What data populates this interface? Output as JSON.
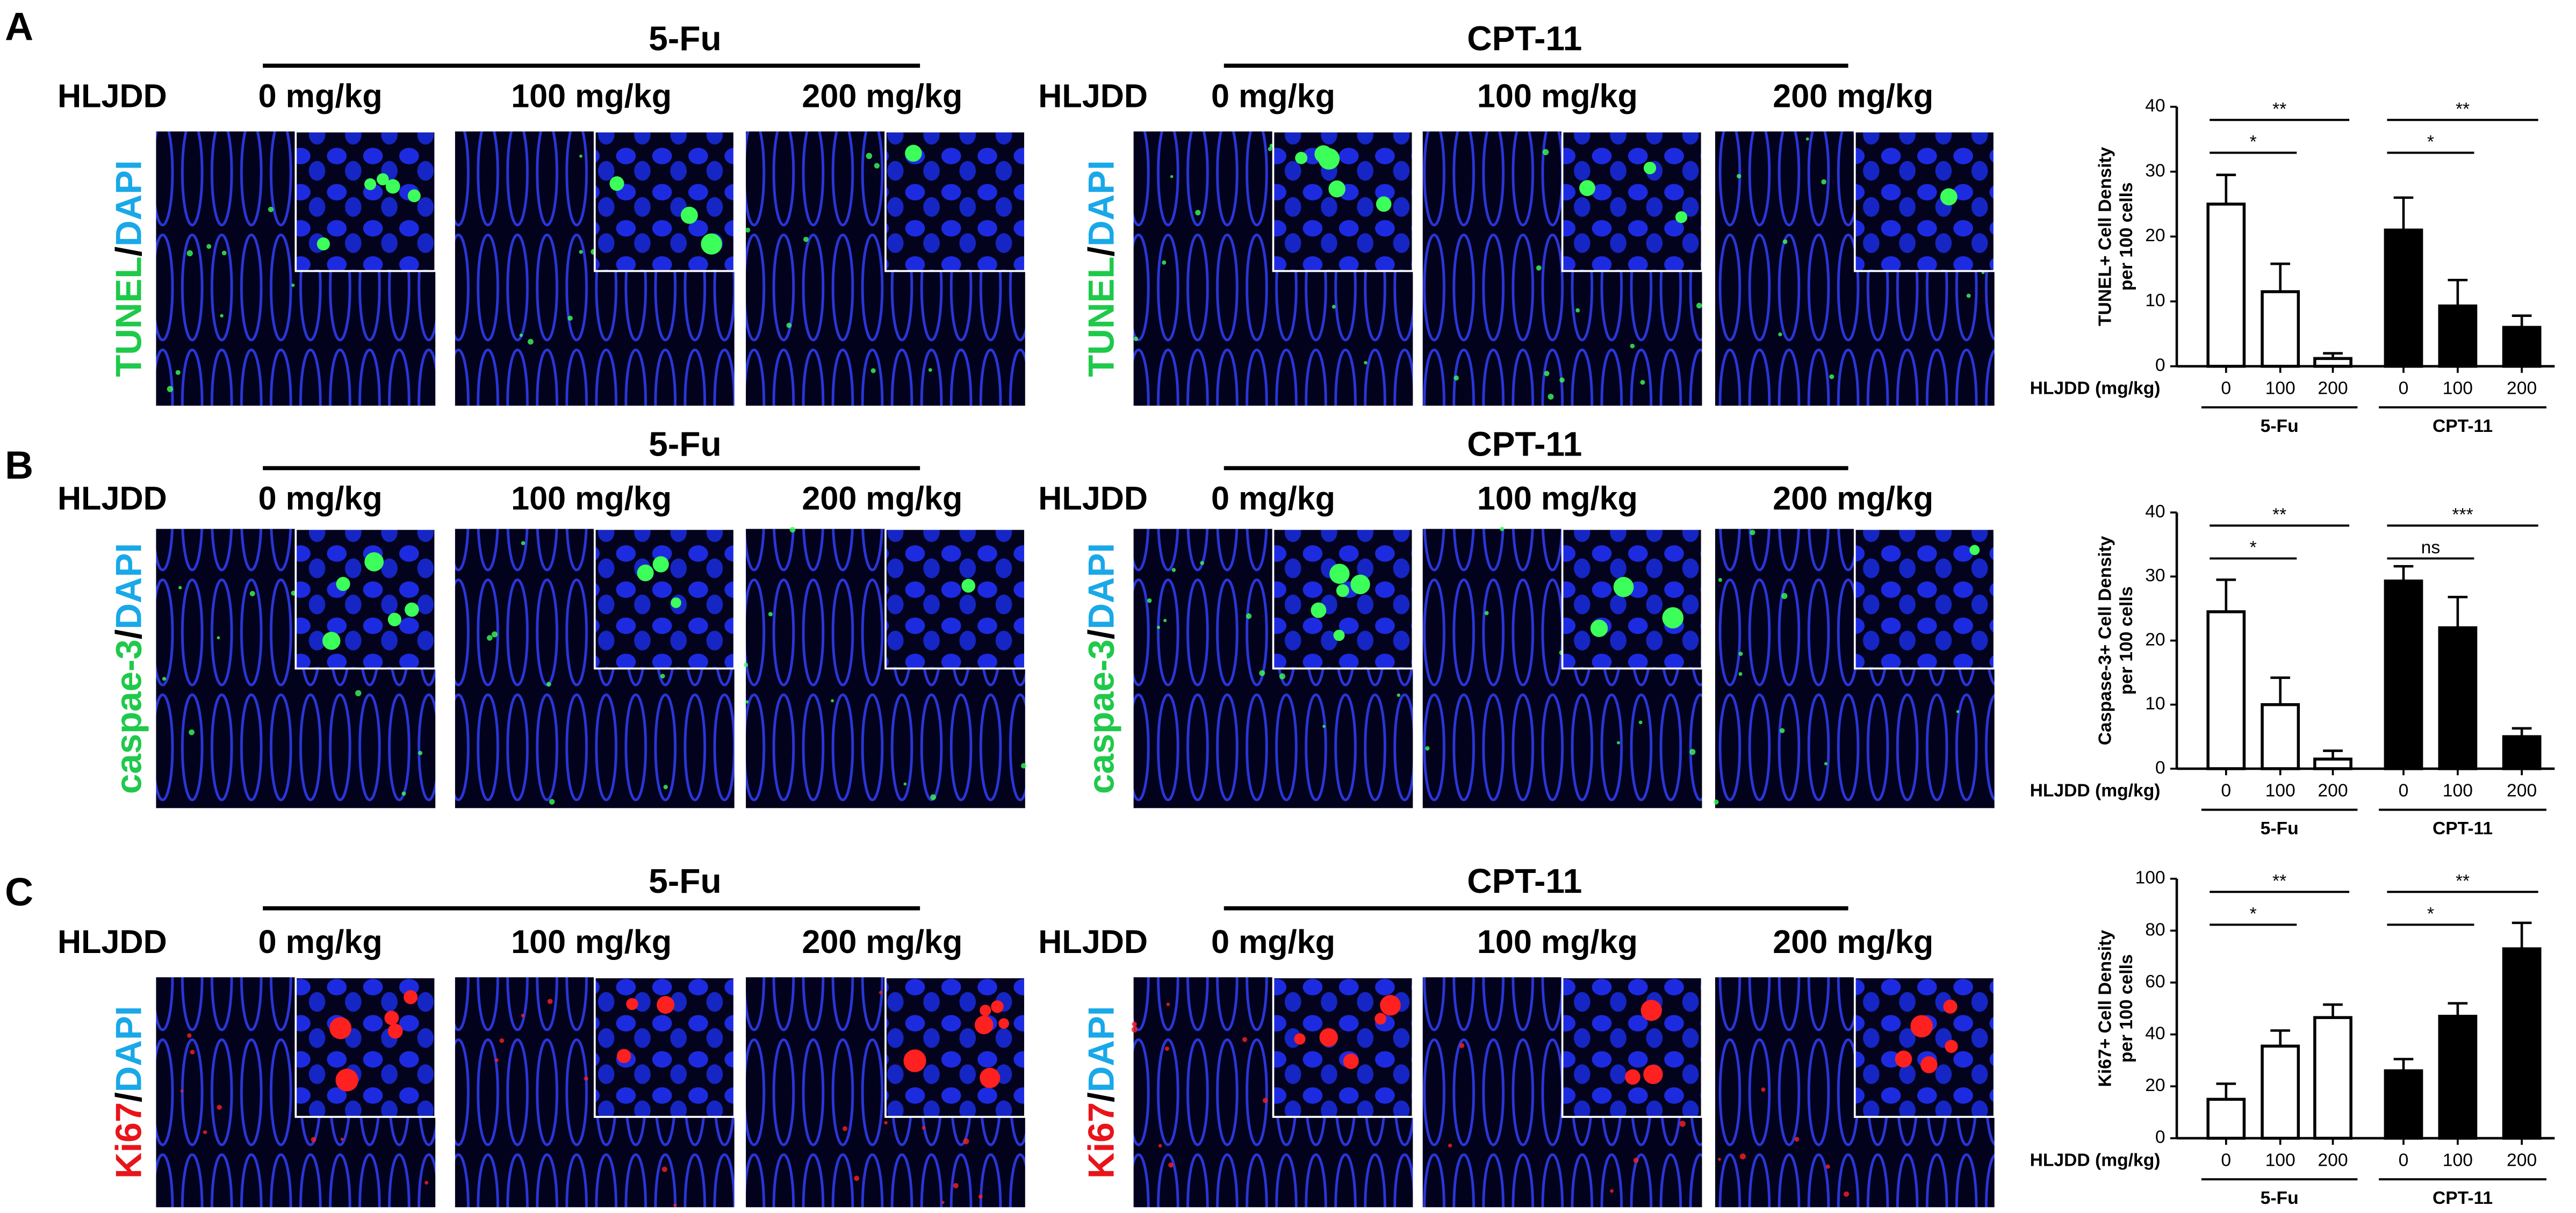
{
  "panels": [
    {
      "letter": "A",
      "stain": [
        "TUNEL",
        "/",
        "DAPI"
      ],
      "groups": [
        {
          "drug": "5-Fu",
          "dose_label": "HLJDD",
          "doses": [
            "0 mg/kg",
            "100 mg/kg",
            "200 mg/kg"
          ]
        },
        {
          "drug": "CPT-11",
          "dose_label": "HLJDD",
          "doses": [
            "0 mg/kg",
            "100 mg/kg",
            "200 mg/kg"
          ]
        }
      ]
    },
    {
      "letter": "B",
      "stain": [
        "caspae-3",
        "/",
        "DAPI"
      ],
      "groups": [
        {
          "drug": "5-Fu",
          "dose_label": "HLJDD",
          "doses": [
            "0 mg/kg",
            "100 mg/kg",
            "200 mg/kg"
          ]
        },
        {
          "drug": "CPT-11",
          "dose_label": "HLJDD",
          "doses": [
            "0 mg/kg",
            "100 mg/kg",
            "200 mg/kg"
          ]
        }
      ]
    },
    {
      "letter": "C",
      "stain": [
        "Ki67",
        "/",
        "DAPI"
      ],
      "groups": [
        {
          "drug": "5-Fu",
          "dose_label": "HLJDD",
          "doses": [
            "0 mg/kg",
            "100 mg/kg",
            "200 mg/kg"
          ]
        },
        {
          "drug": "CPT-11",
          "dose_label": "HLJDD",
          "doses": [
            "0 mg/kg",
            "100 mg/kg",
            "200 mg/kg"
          ]
        }
      ]
    }
  ],
  "chart_data": [
    {
      "type": "bar",
      "y_label": [
        "TUNEL+ Cell Density",
        "per 100 cells"
      ],
      "x_label": "HLJDD (mg/kg)",
      "categories": [
        "0",
        "100",
        "200"
      ],
      "series": [
        {
          "name": "5-Fu",
          "color": "#ffffff",
          "values": [
            25,
            11.5,
            1.2
          ],
          "errors": [
            4.5,
            4.3,
            0.8
          ]
        },
        {
          "name": "CPT-11",
          "color": "#000000",
          "values": [
            21,
            9.3,
            6
          ],
          "errors": [
            5,
            4,
            1.8
          ]
        }
      ],
      "ylim": [
        0,
        40
      ],
      "yticks": [
        0,
        10,
        20,
        30,
        40
      ],
      "annotations": [
        {
          "text": "*",
          "series": "5-Fu",
          "between": [
            "0",
            "100"
          ]
        },
        {
          "text": "**",
          "series": "5-Fu",
          "between": [
            "0",
            "200"
          ]
        },
        {
          "text": "*",
          "series": "CPT-11",
          "between": [
            "0",
            "100"
          ]
        },
        {
          "text": "**",
          "series": "CPT-11",
          "between": [
            "0",
            "200"
          ]
        }
      ]
    },
    {
      "type": "bar",
      "y_label": [
        "Caspase-3+ Cell Density",
        "per 100 cells"
      ],
      "x_label": "HLJDD (mg/kg)",
      "categories": [
        "0",
        "100",
        "200"
      ],
      "series": [
        {
          "name": "5-Fu",
          "color": "#ffffff",
          "values": [
            24.5,
            10,
            1.5
          ],
          "errors": [
            5,
            4.2,
            1.3
          ]
        },
        {
          "name": "CPT-11",
          "color": "#000000",
          "values": [
            29.3,
            22,
            5
          ],
          "errors": [
            2.3,
            4.8,
            1.3
          ]
        }
      ],
      "ylim": [
        0,
        40
      ],
      "yticks": [
        0,
        10,
        20,
        30,
        40
      ],
      "annotations": [
        {
          "text": "*",
          "series": "5-Fu",
          "between": [
            "0",
            "100"
          ]
        },
        {
          "text": "**",
          "series": "5-Fu",
          "between": [
            "0",
            "200"
          ]
        },
        {
          "text": "ns",
          "series": "CPT-11",
          "between": [
            "0",
            "100"
          ]
        },
        {
          "text": "***",
          "series": "CPT-11",
          "between": [
            "0",
            "200"
          ]
        }
      ]
    },
    {
      "type": "bar",
      "y_label": [
        "Ki67+ Cell Density",
        "per 100 cells"
      ],
      "x_label": "HLJDD (mg/kg)",
      "categories": [
        "0",
        "100",
        "200"
      ],
      "series": [
        {
          "name": "5-Fu",
          "color": "#ffffff",
          "values": [
            15,
            35.5,
            46.5
          ],
          "errors": [
            6,
            6,
            5
          ]
        },
        {
          "name": "CPT-11",
          "color": "#000000",
          "values": [
            26,
            47,
            73
          ],
          "errors": [
            4.5,
            5,
            10
          ]
        }
      ],
      "ylim": [
        0,
        100
      ],
      "yticks": [
        0,
        20,
        40,
        60,
        80,
        100
      ],
      "annotations": [
        {
          "text": "*",
          "series": "5-Fu",
          "between": [
            "0",
            "100"
          ]
        },
        {
          "text": "**",
          "series": "5-Fu",
          "between": [
            "0",
            "200"
          ]
        },
        {
          "text": "*",
          "series": "CPT-11",
          "between": [
            "0",
            "100"
          ]
        },
        {
          "text": "**",
          "series": "CPT-11",
          "between": [
            "0",
            "200"
          ]
        }
      ]
    }
  ]
}
